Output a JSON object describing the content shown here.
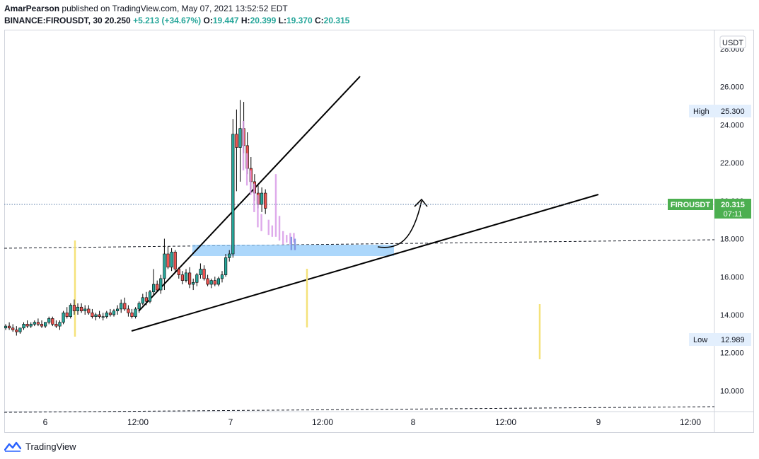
{
  "header": {
    "publisher": "AmarPearson",
    "published_text": "published on TradingView.com, May 07, 2021 13:52:52 EDT",
    "symbol": "BINANCE:FIROUSDT, 30",
    "last": "20.250",
    "change": "+5.213 (+34.67%)",
    "open_label": "O:",
    "open": "19.447",
    "high_label": "H:",
    "high": "20.399",
    "low_label": "L:",
    "low": "19.370",
    "close_label": "C:",
    "close": "20.315"
  },
  "footer": {
    "brand": "TradingView"
  },
  "colors": {
    "up": "#26a69a",
    "down": "#ef5350",
    "projection": "#d89be8",
    "zone": "#90caf9",
    "marker": "#f5e27a",
    "price_tag": "#4caf50"
  },
  "chart_data": {
    "type": "candlestick",
    "currency_label": "USDT",
    "x_ticks": [
      "6",
      "12:00",
      "7",
      "12:00",
      "8",
      "12:00",
      "9",
      "12:00"
    ],
    "y_ticks": [
      "28.000",
      "26.000",
      "24.000",
      "22.000",
      "20.000",
      "18.000",
      "16.000",
      "14.000",
      "12.000",
      "10.000"
    ],
    "ylim": [
      8.9,
      29.0
    ],
    "xlim": [
      0,
      115
    ],
    "high_label": "High",
    "high_value": "25.300",
    "low_label": "Low",
    "low_value": "12.989",
    "symbol_tag": "FIROUSDT",
    "price_tag": "20.315",
    "countdown": "07:11",
    "candles": [
      [
        0.0,
        13.3,
        13.5,
        13.2,
        13.4
      ],
      [
        1.0,
        13.4,
        13.6,
        13.2,
        13.3
      ],
      [
        2.0,
        13.3,
        13.5,
        13.1,
        13.2
      ],
      [
        3.0,
        13.2,
        13.4,
        12.9,
        13.1
      ],
      [
        4.0,
        13.1,
        13.3,
        13.0,
        13.3
      ],
      [
        5.0,
        13.3,
        13.6,
        13.2,
        13.5
      ],
      [
        6.0,
        13.5,
        13.7,
        13.3,
        13.4
      ],
      [
        7.0,
        13.4,
        13.6,
        13.3,
        13.5
      ],
      [
        8.0,
        13.5,
        13.7,
        13.4,
        13.6
      ],
      [
        9.0,
        13.6,
        13.8,
        13.4,
        13.5
      ],
      [
        10.0,
        13.5,
        13.7,
        13.3,
        13.4
      ],
      [
        11.0,
        13.4,
        13.6,
        13.3,
        13.6
      ],
      [
        12.0,
        13.6,
        13.9,
        13.5,
        13.8
      ],
      [
        13.0,
        13.8,
        13.9,
        13.4,
        13.5
      ],
      [
        14.0,
        13.5,
        13.7,
        13.3,
        13.4
      ],
      [
        15.0,
        13.4,
        13.7,
        13.2,
        13.6
      ],
      [
        16.0,
        13.6,
        14.2,
        13.5,
        14.1
      ],
      [
        17.0,
        14.1,
        14.4,
        13.8,
        13.9
      ],
      [
        18.0,
        13.9,
        14.6,
        13.8,
        14.5
      ],
      [
        19.0,
        14.5,
        14.8,
        14.0,
        14.2
      ],
      [
        20.0,
        14.2,
        14.6,
        14.0,
        14.4
      ],
      [
        21.0,
        14.4,
        14.6,
        14.1,
        14.2
      ],
      [
        22.0,
        14.2,
        14.5,
        14.0,
        14.3
      ],
      [
        23.0,
        14.3,
        14.5,
        14.0,
        14.1
      ],
      [
        24.0,
        14.1,
        14.3,
        13.8,
        13.9
      ],
      [
        25.0,
        13.9,
        14.1,
        13.7,
        14.0
      ],
      [
        26.0,
        14.0,
        14.2,
        13.8,
        13.9
      ],
      [
        27.0,
        13.9,
        14.1,
        13.7,
        13.9
      ],
      [
        28.0,
        13.9,
        14.2,
        13.8,
        14.1
      ],
      [
        29.0,
        14.1,
        14.3,
        13.9,
        14.0
      ],
      [
        30.0,
        14.0,
        14.3,
        13.9,
        14.2
      ],
      [
        31.0,
        14.2,
        14.5,
        14.0,
        14.3
      ],
      [
        32.0,
        14.3,
        14.8,
        14.1,
        14.6
      ],
      [
        33.0,
        14.6,
        14.9,
        14.2,
        14.3
      ],
      [
        34.0,
        14.3,
        14.5,
        13.9,
        14.1
      ],
      [
        35.0,
        14.1,
        14.3,
        13.8,
        13.9
      ],
      [
        36.0,
        13.9,
        14.4,
        13.8,
        14.3
      ],
      [
        37.0,
        14.3,
        14.7,
        14.1,
        14.6
      ],
      [
        38.0,
        14.6,
        15.1,
        14.5,
        14.9
      ],
      [
        39.0,
        14.9,
        15.2,
        14.5,
        14.7
      ],
      [
        40.0,
        14.7,
        15.3,
        14.6,
        15.2
      ],
      [
        41.0,
        15.2,
        16.4,
        15.0,
        15.6
      ],
      [
        42.0,
        15.6,
        15.8,
        15.2,
        15.3
      ],
      [
        43.0,
        15.3,
        16.1,
        15.1,
        15.9
      ],
      [
        44.0,
        15.9,
        18.0,
        15.3,
        17.2
      ],
      [
        45.0,
        17.2,
        17.6,
        16.4,
        16.5
      ],
      [
        46.0,
        16.5,
        17.5,
        16.3,
        17.3
      ],
      [
        47.0,
        17.3,
        17.4,
        16.2,
        16.4
      ],
      [
        48.0,
        16.4,
        16.5,
        15.9,
        16.1
      ],
      [
        49.0,
        16.1,
        16.3,
        15.6,
        15.8
      ],
      [
        50.0,
        15.8,
        16.4,
        15.7,
        16.2
      ],
      [
        51.0,
        16.2,
        16.5,
        15.4,
        15.6
      ],
      [
        52.0,
        15.6,
        15.9,
        15.3,
        15.7
      ],
      [
        53.0,
        15.7,
        16.2,
        15.5,
        16.1
      ],
      [
        54.0,
        16.1,
        16.7,
        15.9,
        16.4
      ],
      [
        55.0,
        16.4,
        16.6,
        15.8,
        15.9
      ],
      [
        56.0,
        15.9,
        16.1,
        15.5,
        15.6
      ],
      [
        57.0,
        15.6,
        15.9,
        15.4,
        15.8
      ],
      [
        58.0,
        15.8,
        16.0,
        15.5,
        15.6
      ],
      [
        59.0,
        15.6,
        16.0,
        15.5,
        15.9
      ],
      [
        60.0,
        15.9,
        16.3,
        15.7,
        16.1
      ],
      [
        61.0,
        16.1,
        17.2,
        16.0,
        17.0
      ],
      [
        62.0,
        17.0,
        17.4,
        16.8,
        17.2
      ],
      [
        63.0,
        17.2,
        24.3,
        17.0,
        23.5
      ],
      [
        64.0,
        23.5,
        24.8,
        20.5,
        22.8
      ],
      [
        65.0,
        22.8,
        25.3,
        21.0,
        23.8
      ],
      [
        66.0,
        23.8,
        25.2,
        22.5,
        22.9
      ],
      [
        67.0,
        22.9,
        23.6,
        21.4,
        21.7
      ],
      [
        68.0,
        21.7,
        22.3,
        20.6,
        21.0
      ],
      [
        69.0,
        21.0,
        21.4,
        20.0,
        20.4
      ],
      [
        70.0,
        20.4,
        20.8,
        19.6,
        19.8
      ],
      [
        71.0,
        19.8,
        20.7,
        19.4,
        20.4
      ],
      [
        72.0,
        20.4,
        20.6,
        19.3,
        19.6
      ]
    ],
    "projection_candles": [
      [
        65.5,
        23.9,
        24.2,
        21.6,
        21.9
      ],
      [
        66.5,
        21.9,
        22.5,
        20.8,
        21.1
      ],
      [
        67.5,
        21.1,
        21.6,
        20.3,
        20.5
      ],
      [
        68.5,
        20.5,
        20.9,
        19.4,
        19.7
      ],
      [
        69.5,
        19.7,
        20.3,
        18.6,
        18.9
      ],
      [
        70.5,
        18.9,
        19.3,
        18.4,
        18.6
      ],
      [
        72.5,
        18.6,
        19.0,
        18.2,
        18.4
      ],
      [
        73.5,
        18.4,
        18.7,
        18.1,
        18.2
      ],
      [
        74.5,
        18.2,
        21.4,
        18.1,
        18.5
      ],
      [
        75.5,
        18.5,
        19.2,
        17.9,
        18.1
      ],
      [
        76.5,
        18.1,
        18.4,
        17.7,
        17.9
      ],
      [
        77.5,
        17.9,
        18.2,
        17.8,
        18.0
      ],
      [
        78.5,
        18.0,
        18.3,
        17.7,
        17.9
      ],
      [
        79.5,
        17.9,
        18.3,
        17.8,
        18.1
      ]
    ],
    "projection_blue": [
      [
        78.8,
        18.0,
        18.1,
        17.4,
        17.5
      ],
      [
        79.8,
        17.5,
        18.0,
        17.4,
        17.8
      ]
    ]
  }
}
